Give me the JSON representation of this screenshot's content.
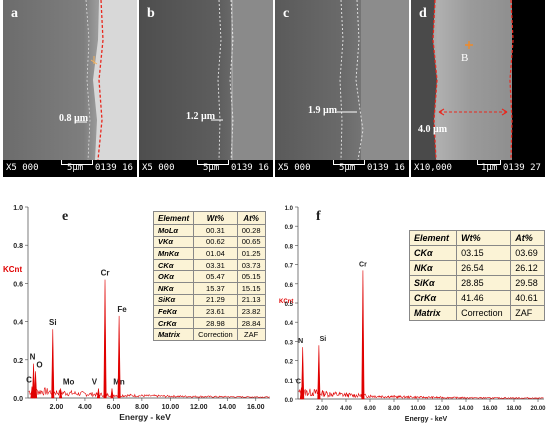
{
  "panels": [
    {
      "letter": "a",
      "measure": "0.8 µm",
      "scale_text": "5µm",
      "mag": "X5 000",
      "code": "0139 16"
    },
    {
      "letter": "b",
      "measure": "1.2 µm",
      "scale_text": "5µm",
      "mag": "X5 000",
      "code": "0139 16"
    },
    {
      "letter": "c",
      "measure": "1.9 µm",
      "scale_text": "5µm",
      "mag": "X5 000",
      "code": "0139 16"
    },
    {
      "letter": "d",
      "measure": "4.0 µm",
      "scale_text": "1µm",
      "mag": "X10,000",
      "code": "0139 27",
      "point_label": "B"
    }
  ],
  "colors": {
    "spectrum": "#e00000",
    "dashed": "#e8281e",
    "axis_text": "#222222",
    "kcnt": "#e00000",
    "table_bg": "#fbf3d6"
  },
  "chart_data": [
    {
      "type": "line",
      "panel_letter": "e",
      "ylabel": "KCnt",
      "xlabel": "Energy - keV",
      "xlim": [
        0,
        17
      ],
      "ylim": [
        0,
        1.0
      ],
      "x_ticks": [
        "2.00",
        "4.00",
        "6.00",
        "8.00",
        "10.00",
        "12.00",
        "14.00",
        "16.00"
      ],
      "y_ticks": [
        "0.0",
        "0.2",
        "0.4",
        "0.6",
        "0.8",
        "1.0"
      ],
      "peaks": [
        {
          "label": "C",
          "x": 0.28,
          "y": 0.06
        },
        {
          "label": "N",
          "x": 0.39,
          "y": 0.18
        },
        {
          "label": "O",
          "x": 0.53,
          "y": 0.14
        },
        {
          "label": "Si",
          "x": 1.74,
          "y": 0.36
        },
        {
          "label": "Mo",
          "x": 2.29,
          "y": 0.05
        },
        {
          "label": "V",
          "x": 4.95,
          "y": 0.05
        },
        {
          "label": "Cr",
          "x": 5.41,
          "y": 0.62
        },
        {
          "label": "Mn",
          "x": 5.9,
          "y": 0.05
        },
        {
          "label": "Fe",
          "x": 6.4,
          "y": 0.43
        }
      ],
      "table": {
        "headers": [
          "Element",
          "Wt%",
          "At%"
        ],
        "rows": [
          [
            "MoLα",
            "00.31",
            "00.28"
          ],
          [
            "VKα",
            "00.62",
            "00.65"
          ],
          [
            "MnKα",
            "01.04",
            "01.25"
          ],
          [
            "CKα",
            "03.31",
            "03.73"
          ],
          [
            "OKα",
            "05.47",
            "05.15"
          ],
          [
            "NKα",
            "15.37",
            "15.15"
          ],
          [
            "SiKα",
            "21.29",
            "21.13"
          ],
          [
            "FeKα",
            "23.61",
            "23.82"
          ],
          [
            "CrKα",
            "28.98",
            "28.84"
          ],
          [
            "Matrix",
            "Correction",
            "ZAF"
          ]
        ]
      }
    },
    {
      "type": "line",
      "panel_letter": "f",
      "ylabel": "KCnt",
      "xlabel": "Energy - keV",
      "xlim": [
        0,
        20.5
      ],
      "ylim": [
        0,
        1.0
      ],
      "x_ticks": [
        "2.00",
        "4.00",
        "6.00",
        "8.00",
        "10.00",
        "12.00",
        "14.00",
        "16.00",
        "18.00",
        "20.00"
      ],
      "y_ticks": [
        "0.0",
        "0.1",
        "0.2",
        "0.3",
        "0.4",
        "0.5",
        "0.6",
        "0.7",
        "0.8",
        "0.9",
        "1.0"
      ],
      "peaks": [
        {
          "label": "C",
          "x": 0.28,
          "y": 0.06
        },
        {
          "label": "N",
          "x": 0.39,
          "y": 0.27
        },
        {
          "label": "Si",
          "x": 1.74,
          "y": 0.28
        },
        {
          "label": "Cr",
          "x": 5.41,
          "y": 0.67
        }
      ],
      "table": {
        "headers": [
          "Element",
          "Wt%",
          "At%"
        ],
        "rows": [
          [
            "CKα",
            "03.15",
            "03.69"
          ],
          [
            "NKα",
            "26.54",
            "26.12"
          ],
          [
            "SiKα",
            "28.85",
            "29.58"
          ],
          [
            "CrKα",
            "41.46",
            "40.61"
          ],
          [
            "Matrix",
            "Correction",
            "ZAF"
          ]
        ]
      }
    }
  ]
}
